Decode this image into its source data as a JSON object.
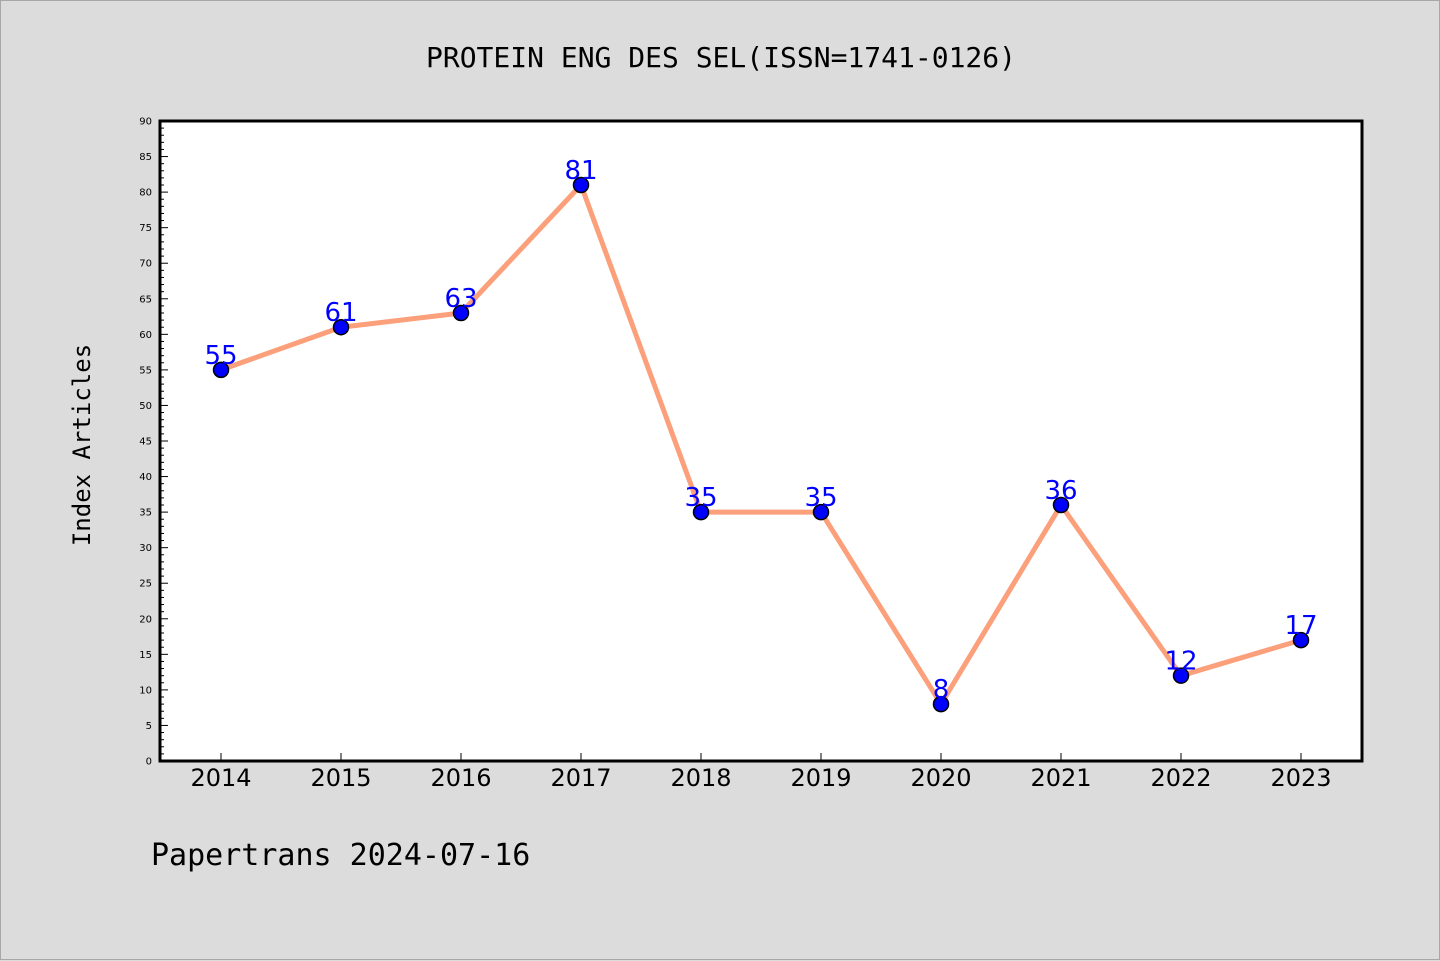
{
  "chart_data": {
    "type": "line",
    "title": "PROTEIN ENG DES SEL(ISSN=1741-0126)",
    "xlabel": "",
    "ylabel": "Index Articles",
    "categories": [
      "2014",
      "2015",
      "2016",
      "2017",
      "2018",
      "2019",
      "2020",
      "2021",
      "2022",
      "2023"
    ],
    "values": [
      55,
      61,
      63,
      81,
      35,
      35,
      8,
      36,
      12,
      17
    ],
    "ylim": [
      0,
      90
    ],
    "yticks": [
      0,
      5,
      10,
      15,
      20,
      25,
      30,
      35,
      40,
      45,
      50,
      55,
      60,
      65,
      70,
      75,
      80,
      85,
      90
    ],
    "grid": false,
    "data_labels": true,
    "colors": {
      "line": "#fca07c",
      "marker": "#0000ff",
      "label": "#0000ff",
      "plot_bg": "#ffffff",
      "page_bg": "#dcdcdc"
    }
  },
  "footer": "Papertrans 2024-07-16"
}
